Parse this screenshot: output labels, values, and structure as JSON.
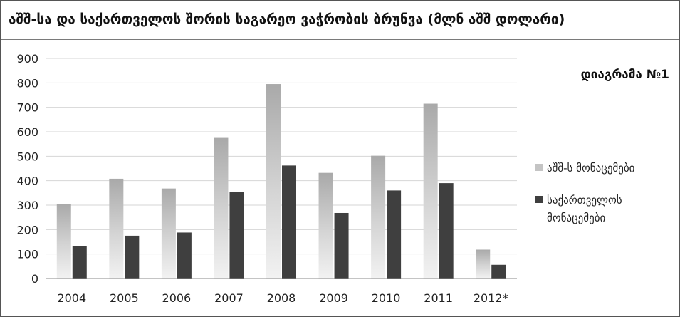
{
  "chart_data": {
    "type": "bar",
    "title": "აშშ-სა და საქართველოს შორის საგარეო ვაჭრობის ბრუნვა (მლნ აშშ დოლარი)",
    "subtitle": "დიაგრამა №1",
    "categories": [
      "2004",
      "2005",
      "2006",
      "2007",
      "2008",
      "2009",
      "2010",
      "2011",
      "2012*"
    ],
    "series": [
      {
        "name": "აშშ-ს მონაცემები",
        "values": [
          305,
          408,
          368,
          575,
          795,
          432,
          502,
          715,
          118
        ]
      },
      {
        "name": "საქართველოს მონაცემები",
        "values": [
          132,
          175,
          188,
          353,
          462,
          268,
          360,
          390,
          56
        ]
      }
    ],
    "ylim": [
      0,
      900
    ],
    "yticks": [
      "0",
      "100",
      "200",
      "300",
      "400",
      "500",
      "600",
      "700",
      "800",
      "900"
    ],
    "grid": true,
    "legend": "right",
    "colors": {
      "series1": "#c4c4c4",
      "series2": "#3f3f3f",
      "gridline": "#d6d6d6",
      "axis": "#888888"
    }
  }
}
